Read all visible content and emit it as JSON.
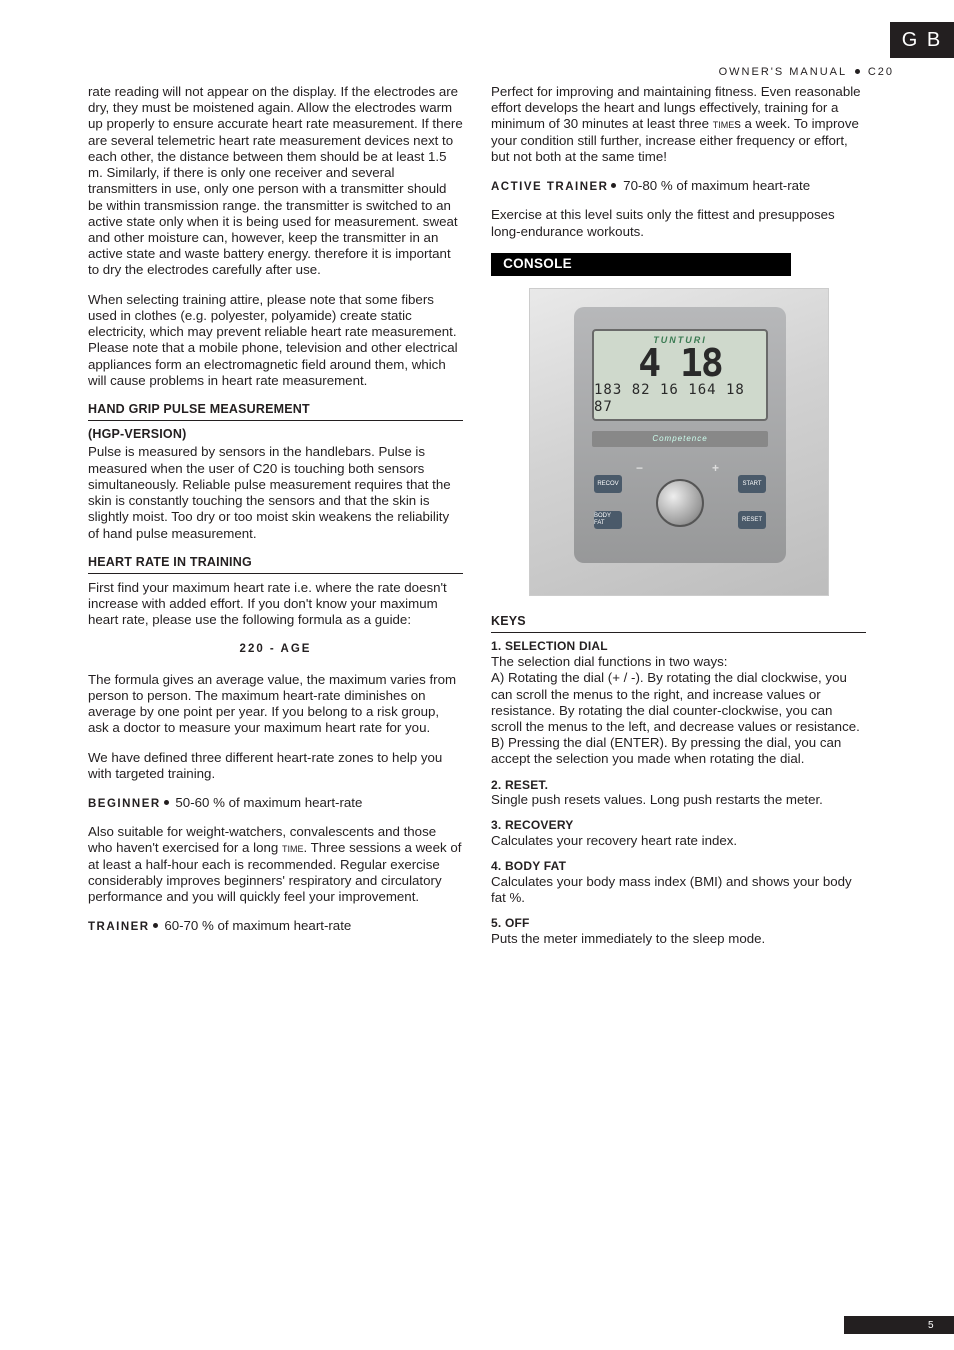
{
  "tab": "G B",
  "header": {
    "left": "OWNER'S MANUAL",
    "right": "C20"
  },
  "pageNumber": "5",
  "left": {
    "p1": "rate reading will not appear on the display. If the electrodes are dry, they must be moistened again. Allow the electrodes warm up properly to ensure accurate heart rate measurement. If there are several telemetric heart rate measurement devices next to each other, the distance between them should be at least 1.5 m. Similarly, if there is only one receiver and several transmitters in use, only one person with a transmitter should be within transmission range. the transmitter is switched to an active state only when it is being  used for measurement. sweat and other moisture can, however, keep the transmitter in an active state and waste battery energy. therefore it is important to dry the electrodes carefully after use.",
    "p2": "When selecting training attire, please note that some fibers used in clothes (e.g. polyester, polyamide) create static electricity, which may prevent reliable heart rate measurement. Please note that a mobile phone, television and other electrical appliances form an electromagnetic field around them, which will cause problems in heart rate measurement.",
    "h_hgp": "HAND GRIP PULSE MEASUREMENT",
    "h_hgp2": " (HGP-VERSION)",
    "p3": "Pulse is measured by sensors in the handlebars. Pulse is measured when the user of C20 is touching both sensors simultaneously. Reliable pulse measurement requires that the skin is constantly touching the sensors and that the skin is slightly moist. Too dry or too moist skin weakens the reliability of hand pulse measurement.",
    "h_hr": "HEART RATE IN TRAINING",
    "p4": "First find your maximum heart rate i.e. where the rate doesn't increase with added effort. If you don't know your maximum heart rate, please use the following formula as a guide:",
    "formula": "220 - AGE",
    "p5": "The formula gives an average value, the maximum varies from person to person. The maximum heart-rate diminishes on average by one point per year. If you belong to a risk group, ask a doctor to measure your maximum heart rate for you.",
    "p6": "We have defined three different heart-rate zones to help you with targeted training.",
    "beginner_label": "BEGINNER",
    "beginner_val": " 50-60 % of maximum heart-rate",
    "p7a": "Also suitable for weight-watchers, convalescents and those who haven't exercised for a long ",
    "p7b": ". Three sessions a week of at least a half-hour each is recommended. Regular exercise considerably improves beginners' respiratory and circulatory performance and you will quickly feel your improvement.",
    "time_sc": "time",
    "trainer_label": "TRAINER",
    "trainer_val": " 60-70 % of maximum heart-rate"
  },
  "right": {
    "p1a": "Perfect for improving and maintaining fitness. Even reasonable effort develops the heart and lungs effectively, training for a minimum of 30 minutes at least three ",
    "p1b": "s a week. To improve your condition still further, increase either frequency or effort, but not both at the same time!",
    "time_sc": "time",
    "active_label": "ACTIVE TRAINER",
    "active_val": " 70-80 % of maximum heart-rate",
    "p2": "Exercise at this level suits only the fittest and presupposes long-endurance workouts.",
    "console_heading": "CONSOLE",
    "console": {
      "brand": "TUNTURI",
      "digits": "4 18",
      "digits_small": "183 82 16  164 18  87",
      "competence": "Competence",
      "btns": {
        "b1": "RECOV",
        "b2": "START",
        "b3": "BODY FAT",
        "b4": "RESET"
      }
    },
    "keys_heading": "KEYS",
    "keys": [
      {
        "h": "1. SELECTION DIAL",
        "b": "The selection dial functions in two ways:\nA) Rotating the dial (+ / -). By rotating the dial clockwise, you can scroll the menus to the right, and increase values or resistance. By rotating the dial counter-clockwise, you can scroll the menus to the left, and decrease values or resistance.\nB) Pressing the dial (ENTER). By pressing the dial, you can accept the selection you made when rotating the dial."
      },
      {
        "h": "2. RESET.",
        "b": "Single push resets values. Long push restarts the meter."
      },
      {
        "h": "3. RECOVERY",
        "b": "Calculates your recovery heart rate index."
      },
      {
        "h": "4. BODY FAT",
        "b": "Calculates your body mass index (BMI) and shows your body fat %."
      },
      {
        "h": "5. OFF",
        "b": "Puts the meter immediately to the sleep mode."
      }
    ]
  }
}
